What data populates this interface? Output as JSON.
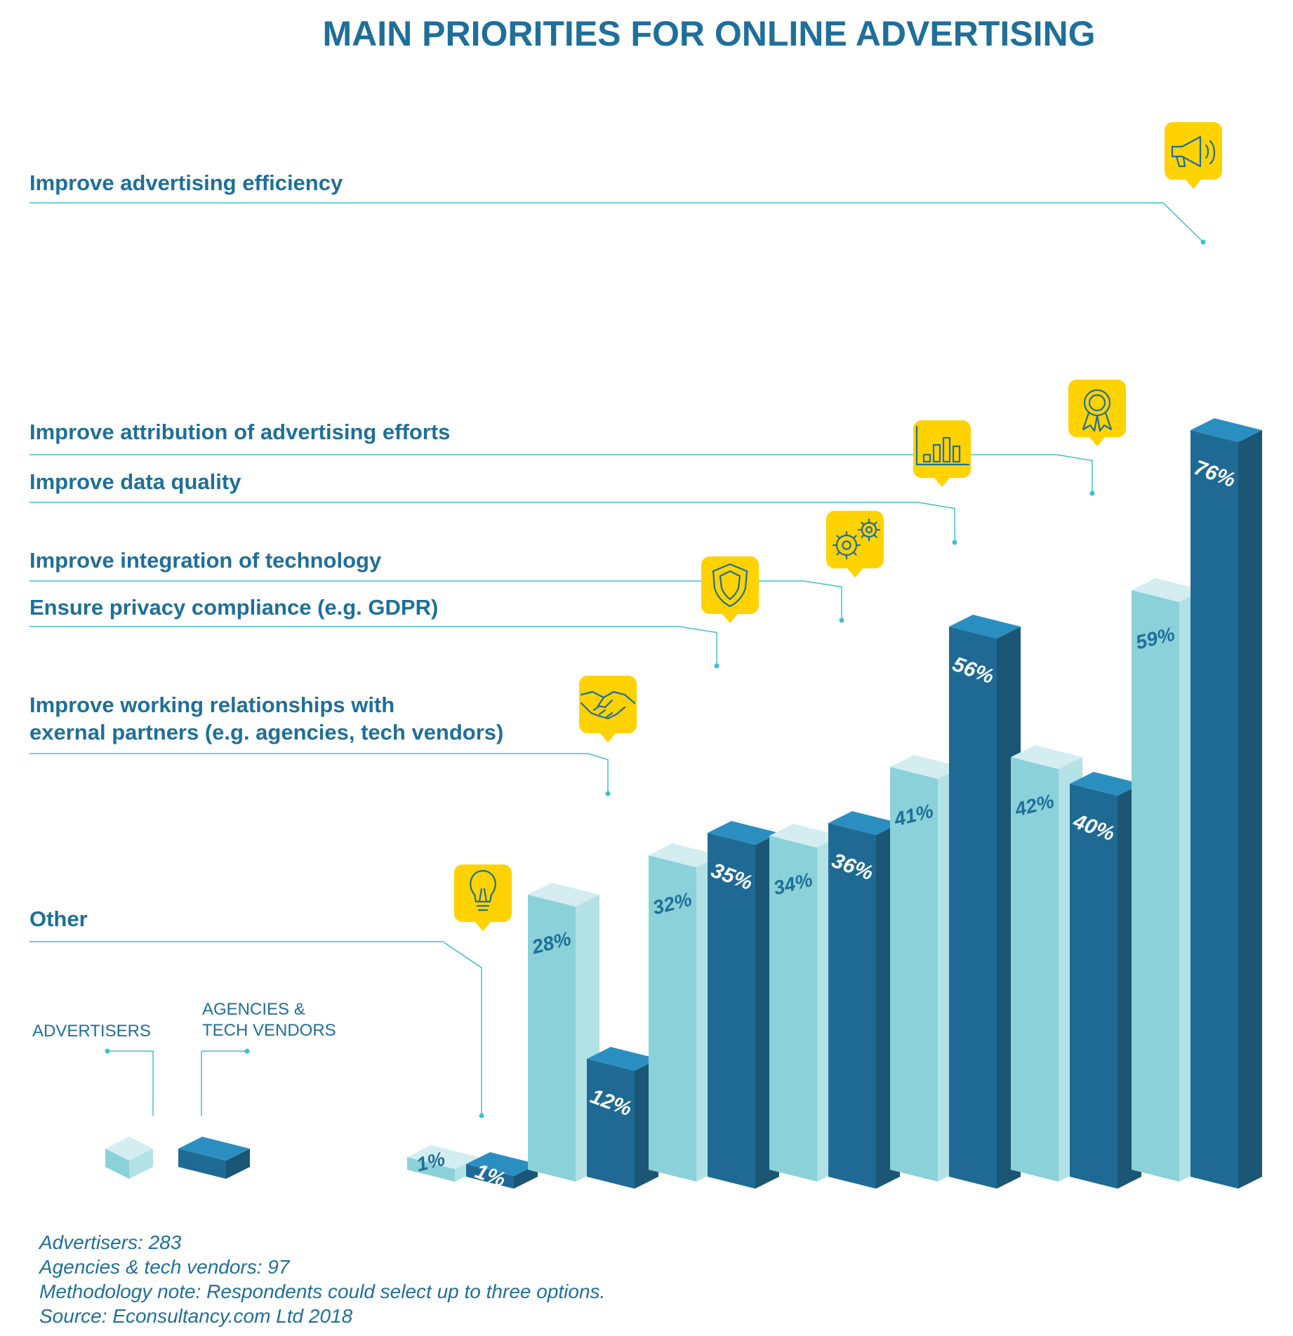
{
  "colors": {
    "title": "#1f6f99",
    "label": "#1f6f99",
    "leader": "#3ebfcc",
    "adv_front": "#8bd1d9",
    "adv_top": "#d3edf0",
    "adv_side": "#b2e1e6",
    "adv_label": "#1f6f99",
    "ag_front": "#1f6a94",
    "ag_top": "#2a8fc0",
    "ag_side": "#1b5675",
    "ag_label": "#ffffff",
    "icon_bg": "#ffd200",
    "icon_fg": "#1f6f99"
  },
  "title": "MAIN PRIORITIES FOR ONLINE ADVERTISING",
  "legend": {
    "advertisers": "ADVERTISERS",
    "agencies_line1": "AGENCIES &",
    "agencies_line2": "TECH VENDORS"
  },
  "footnotes": [
    "Advertisers: 283",
    "Agencies & tech vendors: 97",
    "Methodology note: Respondents could select up to three options.",
    "Source: Econsultancy.com Ltd 2018"
  ],
  "chart_data": {
    "type": "bar",
    "title": "MAIN PRIORITIES FOR ONLINE ADVERTISING",
    "categories": [
      "Other",
      "Improve working relationships with exernal partners (e.g. agencies, tech vendors)",
      "Ensure privacy compliance (e.g. GDPR)",
      "Improve integration of technology",
      "Improve data quality",
      "Improve attribution of advertising efforts",
      "Improve advertising efficiency"
    ],
    "category_label_lines": [
      [
        "Other"
      ],
      [
        "Improve working relationships with",
        "exernal partners (e.g. agencies, tech vendors)"
      ],
      [
        "Ensure privacy compliance (e.g. GDPR)"
      ],
      [
        "Improve integration of technology"
      ],
      [
        "Improve data quality"
      ],
      [
        "Improve attribution of advertising efforts"
      ],
      [
        "Improve advertising efficiency"
      ]
    ],
    "icons": [
      "lightbulb-icon",
      "handshake-icon",
      "shield-icon",
      "gears-icon",
      "bar-chart-icon",
      "award-ribbon-icon",
      "megaphone-icon"
    ],
    "series": [
      {
        "name": "ADVERTISERS",
        "values": [
          1,
          28,
          32,
          34,
          41,
          42,
          59
        ]
      },
      {
        "name": "AGENCIES & TECH VENDORS",
        "values": [
          1,
          12,
          35,
          36,
          56,
          40,
          76
        ]
      }
    ],
    "value_labels": [
      [
        "1%",
        "28%",
        "32%",
        "34%",
        "41%",
        "42%",
        "59%"
      ],
      [
        "1%",
        "12%",
        "35%",
        "36%",
        "56%",
        "40%",
        "76%"
      ]
    ],
    "legend_position": "bottom-left",
    "grid": false
  }
}
